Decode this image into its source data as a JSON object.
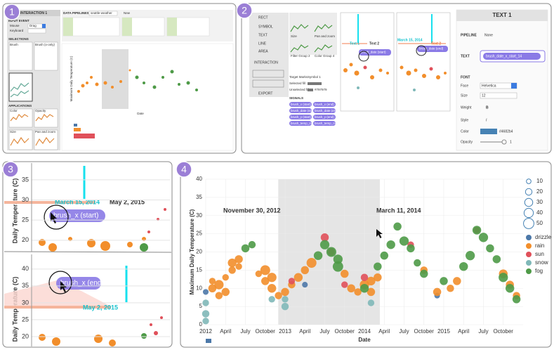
{
  "badges": [
    "1",
    "2",
    "3",
    "4"
  ],
  "panel1": {
    "title": "INTERACTION 1",
    "input_event": "INPUT EVENT",
    "mouse": "Mouse",
    "drag": "Drag",
    "keyboard": "Keyboard",
    "selections": "SELECTIONS",
    "selection_items": [
      "Brush",
      "Brush (x-only)"
    ],
    "applications": "APPLICATIONS",
    "application_items": [
      "Color",
      "Opacity",
      "Size",
      "Pan and zoom"
    ],
    "pipelines": "DATA PIPELINES",
    "dataset": "seattle-weather",
    "new": "New",
    "y_label": "Maximum Daily Temperature (C)",
    "x_label": "Date"
  },
  "panel2": {
    "menu": [
      "RECT",
      "SYMBOL",
      "TEXT",
      "LINE",
      "AREA",
      "INTERACTION",
      "EXPORT"
    ],
    "thumb_labels": [
      "Size",
      "Pan and zoom",
      "Filter Group 2",
      "Color Group 4"
    ],
    "target_marks": "Target Marks",
    "target_value": "Symbol 1",
    "selected_fill": "Selected fill",
    "unselected_fill": "Unselected fill",
    "unselected_color": "#797979",
    "signals": "SIGNALS",
    "signal_items": [
      "brush_x (start)",
      "brush_x (end)",
      "brush_date (start)",
      "brush_date (end)",
      "brush_y (start)",
      "brush_y (end)",
      "brush_temp_max (start)",
      "brush_temp_max (end)"
    ],
    "canvas_a": {
      "text1": "Text 1",
      "text2": "Text 2",
      "chip": "brush_date (start)"
    },
    "canvas_b": {
      "date": "March 15, 2014",
      "text2": "Text 2",
      "chip": "brush_date (end)"
    },
    "inspector": {
      "title": "TEXT 1",
      "pipeline": "PIPELINE",
      "pipeline_value": "None",
      "text": "TEXT",
      "text_value": "brush_date_x_start_14",
      "font": "FONT",
      "face": "Face",
      "face_value": "Helvetica",
      "size": "Size",
      "size_value": "12",
      "weight": "Weight",
      "weight_value": "B",
      "style": "Style",
      "style_value": "I",
      "color": "Color",
      "color_value": "#4682b4",
      "opacity": "Opacity",
      "opacity_value": "1"
    }
  },
  "panel3": {
    "top": {
      "y_label": "Daily Temperature (C)",
      "ylim": [
        17.7,
        38.3
      ],
      "yticks": [
        20,
        25,
        30,
        35
      ],
      "date1": "March 15, 2014",
      "date2": "May 2, 2015",
      "chip": "brush_x (start)"
    },
    "bottom": {
      "y_label": "Daily Temperature (C)",
      "ylim": [
        17.7,
        43.5
      ],
      "yticks": [
        20,
        25,
        30,
        35,
        40
      ],
      "date": "May 2, 2015",
      "chip": "brush_x (end)"
    }
  },
  "chart_data": {
    "type": "scatter",
    "x_label": "Date",
    "y_label": "Maximum Daily Temperature (C)",
    "xlim": [
      "2012-01",
      "2016-01"
    ],
    "xticks": [
      {
        "value": "2012-01",
        "label": "2012"
      },
      {
        "value": "2012-04",
        "label": "April"
      },
      {
        "value": "2012-07",
        "label": "July"
      },
      {
        "value": "2012-10",
        "label": "October"
      },
      {
        "value": "2013-01",
        "label": "2013"
      },
      {
        "value": "2013-04",
        "label": "April"
      },
      {
        "value": "2013-07",
        "label": "July"
      },
      {
        "value": "2013-10",
        "label": "October"
      },
      {
        "value": "2014-01",
        "label": "2014"
      },
      {
        "value": "2014-04",
        "label": "April"
      },
      {
        "value": "2014-07",
        "label": "July"
      },
      {
        "value": "2014-10",
        "label": "October"
      },
      {
        "value": "2015-01",
        "label": "2015"
      },
      {
        "value": "2015-04",
        "label": "April"
      },
      {
        "value": "2015-07",
        "label": "July"
      },
      {
        "value": "2015-10",
        "label": "October"
      }
    ],
    "ylim": [
      0,
      40
    ],
    "yticks": [
      0,
      5,
      10,
      15,
      20,
      25,
      30,
      35,
      40
    ],
    "grid": true,
    "brush": {
      "start": "2012-11-30",
      "end": "2014-03-11",
      "start_label": "November 30, 2012",
      "end_label": "March 11, 2014"
    },
    "size_legend": [
      10,
      20,
      30,
      40,
      50
    ],
    "series": [
      {
        "name": "drizzle",
        "color": "#4c78a8",
        "x": [
          "2012-01",
          "2013-04",
          "2014-12"
        ],
        "values": [
          9,
          11,
          8
        ],
        "sizes": [
          15,
          15,
          15
        ]
      },
      {
        "name": "rain",
        "color": "#f28e2b",
        "x": [
          "2012-02",
          "2012-02",
          "2012-03",
          "2012-03",
          "2012-04",
          "2012-04",
          "2012-05",
          "2012-05",
          "2012-06",
          "2012-06",
          "2012-09",
          "2012-10",
          "2012-10",
          "2012-11",
          "2012-11",
          "2012-12",
          "2013-01",
          "2013-02",
          "2013-03",
          "2013-04",
          "2013-05",
          "2013-10",
          "2013-11",
          "2013-12",
          "2014-01",
          "2014-02",
          "2014-02",
          "2014-03",
          "2014-10",
          "2014-12",
          "2015-02",
          "2015-03",
          "2015-10",
          "2015-11",
          "2015-12"
        ],
        "values": [
          10,
          12,
          8,
          11,
          13,
          9,
          15,
          17,
          18,
          16,
          14,
          15,
          12,
          10,
          13,
          8,
          9,
          11,
          13,
          15,
          17,
          14,
          10,
          9,
          11,
          9,
          12,
          13,
          15,
          9,
          10,
          12,
          14,
          11,
          8
        ],
        "sizes": [
          30,
          20,
          25,
          40,
          20,
          30,
          25,
          35,
          30,
          20,
          20,
          45,
          30,
          35,
          40,
          25,
          30,
          25,
          35,
          30,
          45,
          30,
          30,
          25,
          40,
          30,
          35,
          30,
          25,
          30,
          25,
          30,
          35,
          30,
          25
        ]
      },
      {
        "name": "sun",
        "color": "#e0505a",
        "x": [
          "2013-02",
          "2013-07",
          "2013-08",
          "2013-10",
          "2014-01",
          "2014-08",
          "2015-06"
        ],
        "values": [
          12,
          24,
          20,
          11,
          13,
          22,
          26
        ],
        "sizes": [
          20,
          30,
          25,
          20,
          25,
          20,
          20
        ]
      },
      {
        "name": "snow",
        "color": "#7fb8b8",
        "x": [
          "2012-01",
          "2012-01",
          "2012-01",
          "2012-11",
          "2013-01",
          "2013-01",
          "2014-02"
        ],
        "values": [
          6,
          3,
          1,
          7,
          5,
          7,
          6
        ],
        "sizes": [
          20,
          25,
          20,
          20,
          25,
          20,
          20
        ]
      },
      {
        "name": "fog",
        "color": "#4e9a47",
        "x": [
          "2012-07",
          "2012-08",
          "2013-06",
          "2013-07",
          "2013-08",
          "2013-09",
          "2013-09",
          "2014-01",
          "2014-03",
          "2014-04",
          "2014-05",
          "2014-06",
          "2014-07",
          "2014-08",
          "2014-09",
          "2014-10",
          "2015-01",
          "2015-04",
          "2015-05",
          "2015-06",
          "2015-07",
          "2015-08",
          "2015-09",
          "2015-10",
          "2015-11",
          "2015-12"
        ],
        "values": [
          21,
          22,
          19,
          22,
          20,
          18,
          16,
          10,
          16,
          19,
          22,
          27,
          23,
          21,
          17,
          14,
          12,
          16,
          19,
          26,
          24,
          21,
          18,
          13,
          10,
          7
        ],
        "sizes": [
          30,
          25,
          35,
          40,
          45,
          40,
          50,
          35,
          30,
          30,
          35,
          30,
          40,
          30,
          25,
          30,
          30,
          35,
          40,
          35,
          40,
          30,
          30,
          40,
          35,
          30
        ]
      }
    ]
  }
}
